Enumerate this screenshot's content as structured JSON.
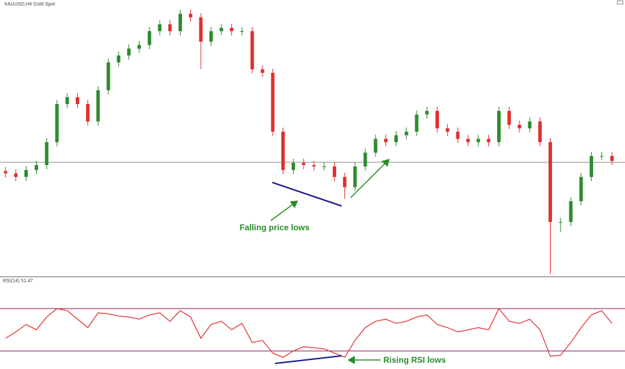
{
  "chart_data": [
    {
      "type": "candlestick",
      "title": "XAUUSD,H4  Gold Spot",
      "open": [
        38,
        37.2,
        35.9,
        38.4,
        40.2,
        48.5,
        62.3,
        64.8,
        62.3,
        56.0,
        67.3,
        77.4,
        79.9,
        82.4,
        83.7,
        88.7,
        91.2,
        88.7,
        95.0,
        93.7,
        84.9,
        88.7,
        89.9,
        88.7,
        88.7,
        74.9,
        73.6,
        52.3,
        38.4,
        41.0,
        40.2,
        39.7,
        39.7,
        35.9,
        32.2,
        39.7,
        44.7,
        49.7,
        48.5,
        51.0,
        52.3,
        58.5,
        59.8,
        53.5,
        52.3,
        49.7,
        48.5,
        49.7,
        48.5,
        59.8,
        54.8,
        53.5,
        56.0,
        48.5,
        19.6,
        19.6,
        27.1,
        35.9,
        43.5,
        43.5
      ],
      "high": [
        39.5,
        38.7,
        39.9,
        41.7,
        50,
        63.8,
        66.3,
        66.3,
        63.8,
        68.8,
        78.9,
        81.4,
        83.9,
        85.2,
        90.2,
        92.7,
        92.7,
        96.5,
        96.5,
        95.2,
        90.2,
        91.4,
        91.4,
        90.2,
        90.2,
        76.4,
        75.1,
        53.8,
        42.5,
        42.5,
        41.7,
        41.2,
        41.2,
        37.4,
        41.2,
        46.2,
        51.2,
        51.2,
        52.5,
        53.8,
        60,
        61.3,
        61.3,
        55,
        53.8,
        51.2,
        51.2,
        51.2,
        61.3,
        61.3,
        56.3,
        57.5,
        57.5,
        50,
        21.1,
        28.6,
        37.4,
        45,
        45,
        45
      ],
      "low": [
        35.7,
        34.4,
        34.4,
        36.9,
        38.7,
        47,
        60.8,
        60.8,
        54.5,
        54.5,
        65.8,
        75.9,
        78.4,
        80.9,
        82.2,
        87.2,
        87.2,
        87.2,
        92.2,
        75,
        83.4,
        87.2,
        87.2,
        87.2,
        73.4,
        72.1,
        50.8,
        36.9,
        36.9,
        38.7,
        38.2,
        38.2,
        34.4,
        28,
        30.7,
        38.2,
        43.2,
        47,
        47,
        49.5,
        50.8,
        57,
        52,
        50.8,
        48.2,
        47,
        47,
        47,
        47,
        53.3,
        52,
        52,
        47,
        0.8,
        16,
        18.1,
        25.6,
        34.4,
        42,
        40.2
      ],
      "close": [
        37.2,
        35.9,
        38.4,
        40.2,
        48.5,
        62.3,
        64.8,
        62.3,
        56.0,
        67.3,
        77.4,
        79.9,
        82.4,
        83.7,
        88.7,
        91.2,
        88.7,
        95.0,
        93.7,
        84.9,
        88.7,
        89.9,
        88.7,
        88.7,
        74.9,
        73.6,
        52.3,
        38.4,
        41.0,
        40.2,
        39.7,
        39.7,
        35.9,
        32.2,
        39.7,
        44.7,
        49.7,
        48.5,
        51.0,
        52.3,
        58.5,
        59.8,
        53.5,
        52.3,
        49.7,
        48.5,
        49.7,
        48.5,
        59.8,
        54.8,
        53.5,
        56.0,
        48.5,
        19.6,
        19.6,
        27.1,
        35.9,
        43.5,
        43.5,
        41.7
      ],
      "ylim": [
        0,
        100
      ],
      "hline": 41.2,
      "up_color": "#2e8b2e",
      "down_color": "#e03030",
      "annotation": "Falling price lows"
    },
    {
      "type": "line",
      "title": "RSI(14) 51.47",
      "values": [
        42,
        48,
        55,
        50,
        62,
        70,
        68,
        60,
        52,
        66,
        65,
        63,
        62,
        60,
        64,
        66,
        58,
        68,
        62,
        42,
        55,
        58,
        50,
        56,
        38,
        40,
        28,
        24,
        30,
        34,
        33,
        32,
        28,
        24,
        40,
        52,
        58,
        60,
        56,
        58,
        62,
        64,
        55,
        52,
        48,
        50,
        52,
        50,
        70,
        58,
        56,
        60,
        50,
        25,
        26,
        38,
        52,
        64,
        68,
        56
      ],
      "ylim": [
        13,
        100
      ],
      "levels": [
        30,
        70
      ],
      "color": "#e03030",
      "level_color": "#8b1a5a",
      "annotation": "Rising RSI lows"
    }
  ]
}
